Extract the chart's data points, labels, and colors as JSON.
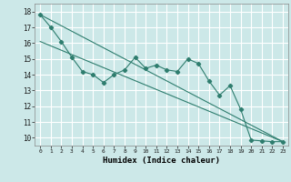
{
  "title": "",
  "xlabel": "Humidex (Indice chaleur)",
  "bg_color": "#cce8e8",
  "grid_color": "#ffffff",
  "line_color": "#2e7d6e",
  "xlim": [
    -0.5,
    23.5
  ],
  "ylim": [
    9.5,
    18.5
  ],
  "xticks": [
    0,
    1,
    2,
    3,
    4,
    5,
    6,
    7,
    8,
    9,
    10,
    11,
    12,
    13,
    14,
    15,
    16,
    17,
    18,
    19,
    20,
    21,
    22,
    23
  ],
  "yticks": [
    10,
    11,
    12,
    13,
    14,
    15,
    16,
    17,
    18
  ],
  "data_x": [
    0,
    1,
    2,
    3,
    4,
    5,
    6,
    7,
    8,
    9,
    10,
    11,
    12,
    13,
    14,
    15,
    16,
    17,
    18,
    19,
    20,
    21,
    22,
    23
  ],
  "data_y": [
    17.8,
    17.0,
    16.1,
    15.1,
    14.2,
    14.0,
    13.5,
    14.0,
    14.3,
    15.1,
    14.4,
    14.6,
    14.3,
    14.2,
    15.0,
    14.7,
    13.6,
    12.7,
    13.3,
    11.8,
    9.85,
    9.8,
    9.75,
    9.75
  ],
  "line1_x": [
    0,
    23
  ],
  "line1_y": [
    17.8,
    9.75
  ],
  "line2_x": [
    0,
    23
  ],
  "line2_y": [
    16.1,
    9.75
  ]
}
